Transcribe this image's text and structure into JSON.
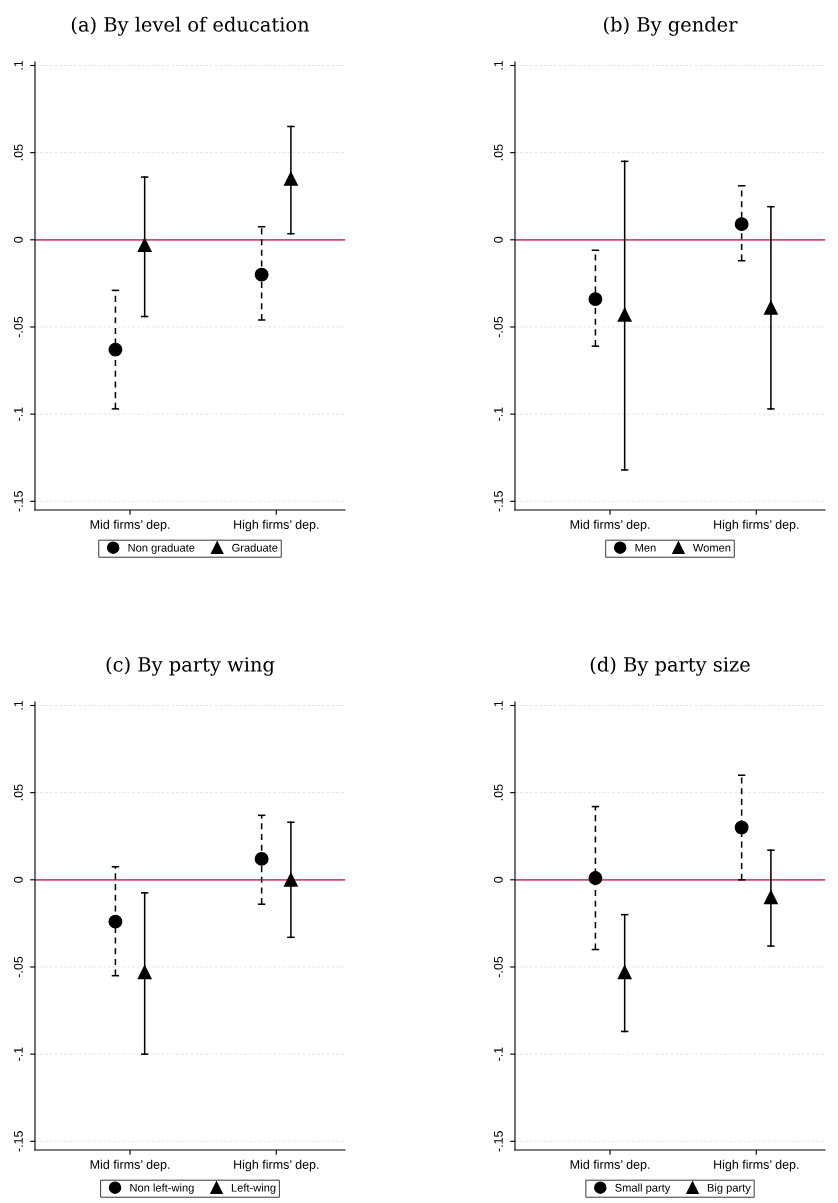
{
  "chart_data": [
    {
      "type": "scatter",
      "title": "(a) By level of education",
      "categories": [
        "Mid firms’ dep.",
        "High firms’ dep."
      ],
      "ylim": [
        -0.155,
        0.102
      ],
      "yticks": [
        {
          "value": 0.1,
          "label": ".1"
        },
        {
          "value": 0.05,
          "label": ".05"
        },
        {
          "value": 0,
          "label": "0"
        },
        {
          "value": -0.05,
          "label": "-.05"
        },
        {
          "value": -0.1,
          "label": "-.1"
        },
        {
          "value": -0.15,
          "label": "-.15"
        }
      ],
      "grid": "y",
      "legend": "bottom",
      "ref_lines": [
        {
          "axis": "y",
          "value": 0,
          "color": "#d6457a"
        }
      ],
      "series": [
        {
          "name": "Non graduate",
          "color": "#000000",
          "marker": "circle",
          "line_style": "dashed",
          "values": [
            -0.063,
            -0.02
          ],
          "errors": [
            [
              -0.097,
              -0.029
            ],
            [
              -0.046,
              0.0075
            ]
          ]
        },
        {
          "name": "Graduate",
          "color": "#000000",
          "marker": "triangle",
          "line_style": "solid",
          "values": [
            -0.003,
            0.035
          ],
          "errors": [
            [
              -0.044,
              0.036
            ],
            [
              0.0035,
              0.065
            ]
          ]
        }
      ]
    },
    {
      "type": "scatter",
      "title": "(b) By gender",
      "categories": [
        "Mid firms’ dep.",
        "High firms’ dep."
      ],
      "ylim": [
        -0.155,
        0.102
      ],
      "yticks": [
        {
          "value": 0.1,
          "label": ".1"
        },
        {
          "value": 0.05,
          "label": ".05"
        },
        {
          "value": 0,
          "label": "0"
        },
        {
          "value": -0.05,
          "label": "-.05"
        },
        {
          "value": -0.1,
          "label": "-.1"
        },
        {
          "value": -0.15,
          "label": "-.15"
        }
      ],
      "grid": "y",
      "legend": "bottom",
      "ref_lines": [
        {
          "axis": "y",
          "value": 0,
          "color": "#d6457a"
        }
      ],
      "series": [
        {
          "name": "Men",
          "color": "#000000",
          "marker": "circle",
          "line_style": "dashed",
          "values": [
            -0.034,
            0.009
          ],
          "errors": [
            [
              -0.061,
              -0.006
            ],
            [
              -0.012,
              0.031
            ]
          ]
        },
        {
          "name": "Women",
          "color": "#000000",
          "marker": "triangle",
          "line_style": "solid",
          "values": [
            -0.043,
            -0.039
          ],
          "errors": [
            [
              -0.132,
              0.045
            ],
            [
              -0.097,
              0.019
            ]
          ]
        }
      ]
    },
    {
      "type": "scatter",
      "title": "(c) By party wing",
      "categories": [
        "Mid firms’ dep.",
        "High firms’ dep."
      ],
      "ylim": [
        -0.155,
        0.102
      ],
      "yticks": [
        {
          "value": 0.1,
          "label": ".1"
        },
        {
          "value": 0.05,
          "label": ".05"
        },
        {
          "value": 0,
          "label": "0"
        },
        {
          "value": -0.05,
          "label": "-.05"
        },
        {
          "value": -0.1,
          "label": "-.1"
        },
        {
          "value": -0.15,
          "label": "-.15"
        }
      ],
      "grid": "y",
      "legend": "bottom",
      "ref_lines": [
        {
          "axis": "y",
          "value": 0,
          "color": "#d6457a"
        }
      ],
      "series": [
        {
          "name": "Non left-wing",
          "color": "#000000",
          "marker": "circle",
          "line_style": "dashed",
          "values": [
            -0.024,
            0.012
          ],
          "errors": [
            [
              -0.055,
              0.0075
            ],
            [
              -0.014,
              0.037
            ]
          ]
        },
        {
          "name": "Left-wing",
          "color": "#000000",
          "marker": "triangle",
          "line_style": "solid",
          "values": [
            -0.053,
            0.0
          ],
          "errors": [
            [
              -0.1,
              -0.0075
            ],
            [
              -0.033,
              0.033
            ]
          ]
        }
      ]
    },
    {
      "type": "scatter",
      "title": "(d) By party size",
      "categories": [
        "Mid firms’ dep.",
        "High firms’ dep."
      ],
      "ylim": [
        -0.155,
        0.102
      ],
      "yticks": [
        {
          "value": 0.1,
          "label": ".1"
        },
        {
          "value": 0.05,
          "label": ".05"
        },
        {
          "value": 0,
          "label": "0"
        },
        {
          "value": -0.05,
          "label": "-.05"
        },
        {
          "value": -0.1,
          "label": "-.1"
        },
        {
          "value": -0.15,
          "label": "-.15"
        }
      ],
      "grid": "y",
      "legend": "bottom",
      "ref_lines": [
        {
          "axis": "y",
          "value": 0,
          "color": "#d6457a"
        }
      ],
      "series": [
        {
          "name": "Small party",
          "color": "#000000",
          "marker": "circle",
          "line_style": "dashed",
          "values": [
            0.001,
            0.03
          ],
          "errors": [
            [
              -0.04,
              0.042
            ],
            [
              0.0,
              0.06
            ]
          ]
        },
        {
          "name": "Big party",
          "color": "#000000",
          "marker": "triangle",
          "line_style": "solid",
          "values": [
            -0.053,
            -0.01
          ],
          "errors": [
            [
              -0.087,
              -0.02
            ],
            [
              -0.038,
              0.017
            ]
          ]
        }
      ]
    }
  ]
}
